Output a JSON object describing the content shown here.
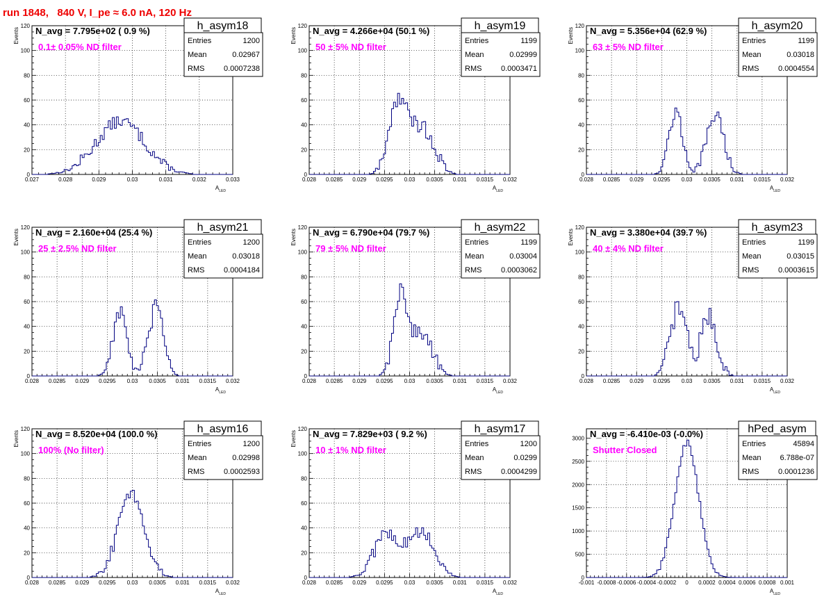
{
  "page_title": "run 1848,   840 V, I_pe ≈ 6.0 nA, 120 Hz",
  "colors": {
    "hist_line": "#000080",
    "annotation": "#ff00ff",
    "title_text": "#ee0000",
    "grid": "#000000"
  },
  "chart_data": [
    {
      "type": "histogram",
      "name": "h_asym18",
      "navg_text": "N_avg = 7.795e+02 ( 0.9 %)",
      "filter_text": "0.1± 0.05% ND filter",
      "stats": {
        "entries_label": "Entries",
        "entries": "1200",
        "mean_label": "Mean",
        "mean": "0.02967",
        "rms_label": "RMS",
        "rms": "0.0007238"
      },
      "xlabel": "A",
      "xlabel_sub": "LED",
      "ylabel": "Events",
      "xlim": [
        0.027,
        0.033
      ],
      "ylim": [
        0,
        120
      ],
      "xticks": [
        0.027,
        0.028,
        0.029,
        0.03,
        0.031,
        0.032,
        0.033
      ],
      "xtick_labels": [
        "0.027",
        "0.028",
        "0.029",
        "0.03",
        "0.031",
        "0.032",
        "0.033"
      ],
      "yticks": [
        0,
        20,
        40,
        60,
        80,
        100,
        120
      ],
      "ytick_labels": [
        "0",
        "20",
        "40",
        "60",
        "80",
        "100",
        "120"
      ],
      "peaks": [
        {
          "mu": 0.02965,
          "sigma": 0.00072,
          "amp": 43
        }
      ],
      "noise": 5
    },
    {
      "type": "histogram",
      "name": "h_asym19",
      "navg_text": "N_avg = 4.266e+04 (50.1 %)",
      "filter_text": "50 ± 5% ND filter",
      "stats": {
        "entries_label": "Entries",
        "entries": "1199",
        "mean_label": "Mean",
        "mean": "0.02999",
        "rms_label": "RMS",
        "rms": "0.0003471"
      },
      "xlabel": "A",
      "xlabel_sub": "LED",
      "ylabel": "Events",
      "xlim": [
        0.028,
        0.032
      ],
      "ylim": [
        0,
        120
      ],
      "xticks": [
        0.028,
        0.0285,
        0.029,
        0.0295,
        0.03,
        0.0305,
        0.031,
        0.0315,
        0.032
      ],
      "xtick_labels": [
        "0.028",
        "0.0285",
        "0.029",
        "0.0295",
        "0.03",
        "0.0305",
        "0.031",
        "0.0315",
        "0.032"
      ],
      "yticks": [
        0,
        20,
        40,
        60,
        80,
        100,
        120
      ],
      "ytick_labels": [
        "0",
        "20",
        "40",
        "60",
        "80",
        "100",
        "120"
      ],
      "peaks": [
        {
          "mu": 0.02977,
          "sigma": 0.00018,
          "amp": 58
        },
        {
          "mu": 0.03025,
          "sigma": 0.00023,
          "amp": 38
        }
      ],
      "noise": 7
    },
    {
      "type": "histogram",
      "name": "h_asym20",
      "navg_text": "N_avg = 5.356e+04 (62.9 %)",
      "filter_text": "63 ± 5% ND filter",
      "stats": {
        "entries_label": "Entries",
        "entries": "1199",
        "mean_label": "Mean",
        "mean": "0.03018",
        "rms_label": "RMS",
        "rms": "0.0004554"
      },
      "xlabel": "A",
      "xlabel_sub": "LED",
      "ylabel": "Events",
      "xlim": [
        0.028,
        0.032
      ],
      "ylim": [
        0,
        120
      ],
      "xticks": [
        0.028,
        0.0285,
        0.029,
        0.0295,
        0.03,
        0.0305,
        0.031,
        0.0315,
        0.032
      ],
      "xtick_labels": [
        "0.028",
        "0.0285",
        "0.029",
        "0.0295",
        "0.03",
        "0.0305",
        "0.031",
        "0.0315",
        "0.032"
      ],
      "yticks": [
        0,
        20,
        40,
        60,
        80,
        100,
        120
      ],
      "ytick_labels": [
        "0",
        "20",
        "40",
        "60",
        "80",
        "100",
        "120"
      ],
      "peaks": [
        {
          "mu": 0.02978,
          "sigma": 0.00014,
          "amp": 50
        },
        {
          "mu": 0.03057,
          "sigma": 0.00017,
          "amp": 48
        }
      ],
      "noise": 6
    },
    {
      "type": "histogram",
      "name": "h_asym21",
      "navg_text": "N_avg = 2.160e+04 (25.4 %)",
      "filter_text": "25 ± 2.5% ND filter",
      "stats": {
        "entries_label": "Entries",
        "entries": "1200",
        "mean_label": "Mean",
        "mean": "0.03018",
        "rms_label": "RMS",
        "rms": "0.0004184"
      },
      "xlabel": "A",
      "xlabel_sub": "LED",
      "ylabel": "Events",
      "xlim": [
        0.028,
        0.032
      ],
      "ylim": [
        0,
        120
      ],
      "xticks": [
        0.028,
        0.0285,
        0.029,
        0.0295,
        0.03,
        0.0305,
        0.031,
        0.0315,
        0.032
      ],
      "xtick_labels": [
        "0.028",
        "0.0285",
        "0.029",
        "0.0295",
        "0.03",
        "0.0305",
        "0.031",
        "0.0315",
        "0.032"
      ],
      "yticks": [
        0,
        20,
        40,
        60,
        80,
        100,
        120
      ],
      "ytick_labels": [
        "0",
        "20",
        "40",
        "60",
        "80",
        "100",
        "120"
      ],
      "peaks": [
        {
          "mu": 0.02975,
          "sigma": 0.00014,
          "amp": 52
        },
        {
          "mu": 0.03048,
          "sigma": 0.00015,
          "amp": 55
        }
      ],
      "noise": 7
    },
    {
      "type": "histogram",
      "name": "h_asym22",
      "navg_text": "N_avg = 6.790e+04 (79.7 %)",
      "filter_text": "79 ± 5% ND filter",
      "stats": {
        "entries_label": "Entries",
        "entries": "1199",
        "mean_label": "Mean",
        "mean": "0.03004",
        "rms_label": "RMS",
        "rms": "0.0003062"
      },
      "xlabel": "A",
      "xlabel_sub": "LED",
      "ylabel": "Events",
      "xlim": [
        0.028,
        0.032
      ],
      "ylim": [
        0,
        120
      ],
      "xticks": [
        0.028,
        0.0285,
        0.029,
        0.0295,
        0.03,
        0.0305,
        0.031,
        0.0315,
        0.032
      ],
      "xtick_labels": [
        "0.028",
        "0.0285",
        "0.029",
        "0.0295",
        "0.03",
        "0.0305",
        "0.031",
        "0.0315",
        "0.032"
      ],
      "yticks": [
        0,
        20,
        40,
        60,
        80,
        100,
        120
      ],
      "ytick_labels": [
        "0",
        "20",
        "40",
        "60",
        "80",
        "100",
        "120"
      ],
      "peaks": [
        {
          "mu": 0.02982,
          "sigma": 0.00014,
          "amp": 66
        },
        {
          "mu": 0.03025,
          "sigma": 0.0002,
          "amp": 35
        }
      ],
      "noise": 6
    },
    {
      "type": "histogram",
      "name": "h_asym23",
      "navg_text": "N_avg = 3.380e+04 (39.7 %)",
      "filter_text": "40 ± 4% ND filter",
      "stats": {
        "entries_label": "Entries",
        "entries": "1199",
        "mean_label": "Mean",
        "mean": "0.03015",
        "rms_label": "RMS",
        "rms": "0.0003615"
      },
      "xlabel": "A",
      "xlabel_sub": "LED",
      "ylabel": "Events",
      "xlim": [
        0.028,
        0.032
      ],
      "ylim": [
        0,
        120
      ],
      "xticks": [
        0.028,
        0.0285,
        0.029,
        0.0295,
        0.03,
        0.0305,
        0.031,
        0.0315,
        0.032
      ],
      "xtick_labels": [
        "0.028",
        "0.0285",
        "0.029",
        "0.0295",
        "0.03",
        "0.0305",
        "0.031",
        "0.0315",
        "0.032"
      ],
      "yticks": [
        0,
        20,
        40,
        60,
        80,
        100,
        120
      ],
      "ytick_labels": [
        "0",
        "20",
        "40",
        "60",
        "80",
        "100",
        "120"
      ],
      "peaks": [
        {
          "mu": 0.02984,
          "sigma": 0.00016,
          "amp": 56
        },
        {
          "mu": 0.03044,
          "sigma": 0.00016,
          "amp": 48
        }
      ],
      "noise": 8
    },
    {
      "type": "histogram",
      "name": "h_asym16",
      "navg_text": "N_avg = 8.520e+04 (100.0 %)",
      "filter_text": "100% (No filter)",
      "stats": {
        "entries_label": "Entries",
        "entries": "1200",
        "mean_label": "Mean",
        "mean": "0.02998",
        "rms_label": "RMS",
        "rms": "0.0002593"
      },
      "xlabel": "A",
      "xlabel_sub": "LED",
      "ylabel": "Events",
      "xlim": [
        0.028,
        0.032
      ],
      "ylim": [
        0,
        120
      ],
      "xticks": [
        0.028,
        0.0285,
        0.029,
        0.0295,
        0.03,
        0.0305,
        0.031,
        0.0315,
        0.032
      ],
      "xtick_labels": [
        "0.028",
        "0.0285",
        "0.029",
        "0.0295",
        "0.03",
        "0.0305",
        "0.031",
        "0.0315",
        "0.032"
      ],
      "yticks": [
        0,
        20,
        40,
        60,
        80,
        100,
        120
      ],
      "ytick_labels": [
        "0",
        "20",
        "40",
        "60",
        "80",
        "100",
        "120"
      ],
      "peaks": [
        {
          "mu": 0.02998,
          "sigma": 0.00026,
          "amp": 68
        }
      ],
      "noise": 5
    },
    {
      "type": "histogram",
      "name": "h_asym17",
      "navg_text": "N_avg = 7.829e+03 ( 9.2 %)",
      "filter_text": "10 ± 1% ND filter",
      "stats": {
        "entries_label": "Entries",
        "entries": "1200",
        "mean_label": "Mean",
        "mean": "0.0299",
        "rms_label": "RMS",
        "rms": "0.0004299"
      },
      "xlabel": "A",
      "xlabel_sub": "LED",
      "ylabel": "Events",
      "xlim": [
        0.028,
        0.032
      ],
      "ylim": [
        0,
        120
      ],
      "xticks": [
        0.028,
        0.0285,
        0.029,
        0.0295,
        0.03,
        0.0305,
        0.031,
        0.0315,
        0.032
      ],
      "xtick_labels": [
        "0.028",
        "0.0285",
        "0.029",
        "0.0295",
        "0.03",
        "0.0305",
        "0.031",
        "0.0315",
        "0.032"
      ],
      "yticks": [
        0,
        20,
        40,
        60,
        80,
        100,
        120
      ],
      "ytick_labels": [
        "0",
        "20",
        "40",
        "60",
        "80",
        "100",
        "120"
      ],
      "peaks": [
        {
          "mu": 0.02955,
          "sigma": 0.00025,
          "amp": 36
        },
        {
          "mu": 0.03025,
          "sigma": 0.00025,
          "amp": 36
        }
      ],
      "noise": 6
    },
    {
      "type": "histogram",
      "name": "hPed_asym",
      "navg_text": "N_avg = -6.410e-03 (-0.0%)",
      "filter_text": "Shutter Closed",
      "stats": {
        "entries_label": "Entries",
        "entries": "45894",
        "mean_label": "Mean",
        "mean": "6.788e-07",
        "rms_label": "RMS",
        "rms": "0.0001236"
      },
      "xlabel": "A",
      "xlabel_sub": "LED",
      "ylabel": "",
      "xlim": [
        -0.001,
        0.001
      ],
      "ylim": [
        0,
        3200
      ],
      "xticks": [
        -0.001,
        -0.0008,
        -0.0006,
        -0.0004,
        -0.0002,
        0,
        0.0002,
        0.0004,
        0.0006,
        0.0008,
        0.001
      ],
      "xtick_labels": [
        "-0.001",
        "-0.0008",
        "-0.0006",
        "-0.0004",
        "-0.0002",
        "0",
        "0.0002",
        "0.0004",
        "0.0006",
        "0.0008",
        "0.001"
      ],
      "yticks": [
        0,
        500,
        1000,
        1500,
        2000,
        2500,
        3000
      ],
      "ytick_labels": [
        "0",
        "500",
        "1000",
        "1500",
        "2000",
        "2500",
        "3000"
      ],
      "peaks": [
        {
          "mu": 0.0,
          "sigma": 0.000118,
          "amp": 2900
        }
      ],
      "noise": 80
    }
  ]
}
